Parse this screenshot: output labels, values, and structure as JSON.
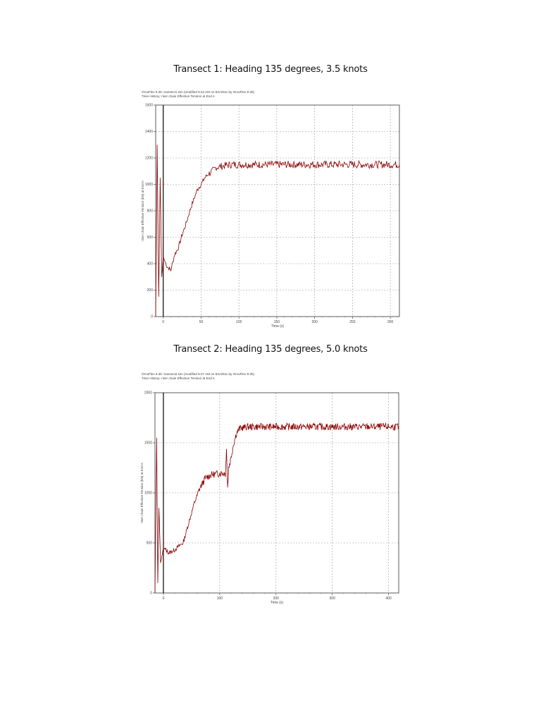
{
  "page": {
    "sections": [
      {
        "title": "Transect 1: Heading 135 degrees, 3.5 knots"
      },
      {
        "title": "Transect 2: Heading 135 degrees, 5.0 knots"
      }
    ]
  },
  "chart_data": [
    {
      "type": "line",
      "title": "Transect 1: Heading 135 degrees, 3.5 knots",
      "header_line1": "OrcaFlex 9.2b: transect1.sim (modified 9:43 AM on 6/1/2011 by OrcaFlex 9.2b)",
      "header_line2": "Time History: riser chain Effective Tension at End A",
      "xlabel": "Time (s)",
      "ylabel": "riser chain Effective Tension (kN) at End A",
      "xlim": [
        -10,
        312
      ],
      "ylim": [
        0,
        1600
      ],
      "xticks": [
        0,
        50,
        100,
        150,
        200,
        250,
        300
      ],
      "yticks": [
        0,
        200,
        400,
        600,
        800,
        1000,
        1200,
        1400,
        1600
      ],
      "grid": true,
      "line_color": "#8b0000",
      "series": [
        {
          "name": "Effective Tension",
          "x": [
            -10,
            -8,
            -6,
            -4,
            -2,
            0,
            5,
            10,
            15,
            20,
            25,
            30,
            35,
            40,
            45,
            50,
            55,
            60,
            65,
            70,
            80,
            90,
            100,
            120,
            150,
            200,
            250,
            300,
            312
          ],
          "values": [
            0,
            1300,
            150,
            1050,
            300,
            450,
            380,
            350,
            470,
            520,
            620,
            700,
            800,
            880,
            960,
            1000,
            1050,
            1080,
            1100,
            1130,
            1140,
            1150,
            1150,
            1150,
            1150,
            1150,
            1150,
            1150,
            1150
          ]
        }
      ]
    },
    {
      "type": "line",
      "title": "Transect 2: Heading 135 degrees, 5.0 knots",
      "header_line1": "OrcaFlex 9.2b: transect2.sim (modified 9:27 AM on 6/1/2011 by OrcaFlex 9.2b)",
      "header_line2": "Time History: riser chain Effective Tension at End A",
      "xlabel": "Time (s)",
      "ylabel": "riser chain Effective Tension (kN) at End A",
      "xlim": [
        -15,
        418
      ],
      "ylim": [
        0,
        2000
      ],
      "xticks": [
        0,
        100,
        200,
        300,
        400
      ],
      "yticks": [
        0,
        500,
        1000,
        1500,
        2000
      ],
      "grid": true,
      "line_color": "#8b0000",
      "series": [
        {
          "name": "Effective Tension",
          "x": [
            -15,
            -12,
            -10,
            -8,
            -5,
            0,
            10,
            20,
            30,
            35,
            45,
            55,
            65,
            75,
            85,
            95,
            105,
            110,
            112,
            114,
            116,
            120,
            125,
            130,
            135,
            140,
            150,
            170,
            200,
            250,
            300,
            350,
            400,
            418
          ],
          "values": [
            0,
            1550,
            100,
            850,
            300,
            450,
            400,
            430,
            480,
            500,
            700,
            900,
            1050,
            1150,
            1180,
            1190,
            1200,
            1190,
            1450,
            1050,
            1250,
            1350,
            1500,
            1600,
            1640,
            1650,
            1660,
            1660,
            1660,
            1660,
            1660,
            1660,
            1660,
            1660
          ]
        }
      ]
    }
  ]
}
